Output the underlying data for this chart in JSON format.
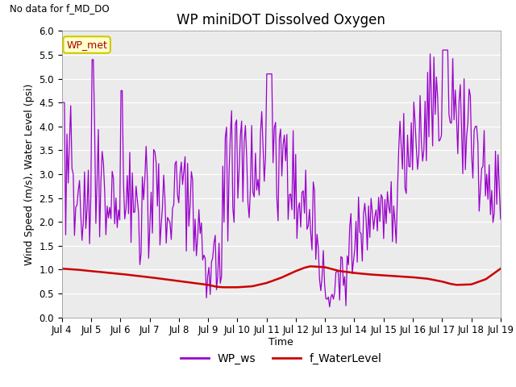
{
  "title": "WP miniDOT Dissolved Oxygen",
  "top_left_text": "No data for f_MD_DO",
  "ylabel": "Wind Speed (m/s), Water Level (psi)",
  "xlabel": "Time",
  "legend_label1": "WP_ws",
  "legend_label2": "f_WaterLevel",
  "annotation_label": "WP_met",
  "xlim_days": [
    4,
    19
  ],
  "ylim": [
    0.0,
    6.0
  ],
  "yticks": [
    0.0,
    0.5,
    1.0,
    1.5,
    2.0,
    2.5,
    3.0,
    3.5,
    4.0,
    4.5,
    5.0,
    5.5,
    6.0
  ],
  "xtick_labels": [
    "Jul 4",
    "Jul 5",
    "Jul 6",
    "Jul 7",
    "Jul 8",
    "Jul 9",
    "Jul 10",
    "Jul 11",
    "Jul 12",
    "Jul 13",
    "Jul 14",
    "Jul 15",
    "Jul 16",
    "Jul 17",
    "Jul 18",
    "Jul 19"
  ],
  "ws_color": "#9900CC",
  "wl_color": "#CC0000",
  "background_color": "#EBEBEB",
  "annotation_bg": "#FFFFCC",
  "annotation_border": "#CCCC00",
  "annotation_text_color": "#AA0000",
  "title_fontsize": 12,
  "label_fontsize": 9,
  "tick_fontsize": 8.5,
  "legend_fontsize": 10
}
